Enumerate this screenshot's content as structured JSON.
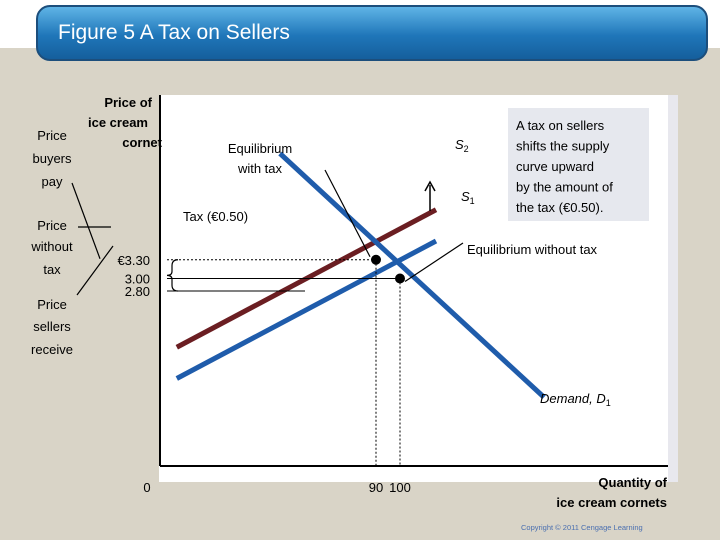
{
  "slide": {
    "title": "Figure 5 A Tax on Sellers",
    "copyright": "Copyright  © 2011  Cengage Learning"
  },
  "colors": {
    "background": "#d9d4c7",
    "chart_bg": "#ffffff",
    "supply_demand_line": "#1f5cab",
    "taxed_supply_line": "#6b1e22",
    "title_bar": "#1f76b9"
  },
  "chart_data": {
    "type": "line",
    "title": "",
    "xlabel": [
      "Quantity of",
      "ice cream cornets"
    ],
    "ylabel": [
      "Price of",
      "ice cream",
      "cornet"
    ],
    "origin_label": "0",
    "x_ticks": [
      {
        "value": 90,
        "label": "90"
      },
      {
        "value": 100,
        "label": "100"
      }
    ],
    "y_ticks": [
      {
        "value": 3.3,
        "label": "€3.30"
      },
      {
        "value": 3.0,
        "label": "3.00"
      },
      {
        "value": 2.8,
        "label": "2.80"
      }
    ],
    "xlim": [
      0,
      250
    ],
    "ylim": [
      0,
      4.8
    ],
    "series": [
      {
        "name": "S2",
        "label_main": "S",
        "label_sub": "2",
        "color": "#6b1e22",
        "x": [
          7,
          115
        ],
        "y": [
          1.9,
          4.1
        ]
      },
      {
        "name": "S1",
        "label_main": "S",
        "label_sub": "1",
        "color": "#1f5cab",
        "x": [
          7,
          115
        ],
        "y": [
          1.4,
          3.6
        ]
      },
      {
        "name": "Demand",
        "label_main": "Demand, D",
        "label_sub": "1",
        "color": "#1f5cab",
        "x": [
          50,
          160
        ],
        "y": [
          5.0,
          1.1
        ]
      }
    ],
    "equilibria": [
      {
        "label": [
          "Equilibrium",
          "with tax"
        ],
        "x": 90,
        "y": 3.3
      },
      {
        "label": [
          "Equilibrium without tax"
        ],
        "x": 100,
        "y": 3.0
      }
    ],
    "tax_label": "Tax (€0.50)",
    "side_labels": [
      {
        "lines": [
          "Price",
          "buyers",
          "pay"
        ],
        "y": 3.3
      },
      {
        "lines": [
          "Price",
          "without",
          "tax"
        ],
        "y": 3.0
      },
      {
        "lines": [
          "Price",
          "sellers",
          "receive"
        ],
        "y": 2.8
      }
    ],
    "annotation": [
      "A tax on sellers",
      "shifts the supply",
      "curve upward",
      "by the amount of",
      "the tax (€0.50)."
    ]
  }
}
